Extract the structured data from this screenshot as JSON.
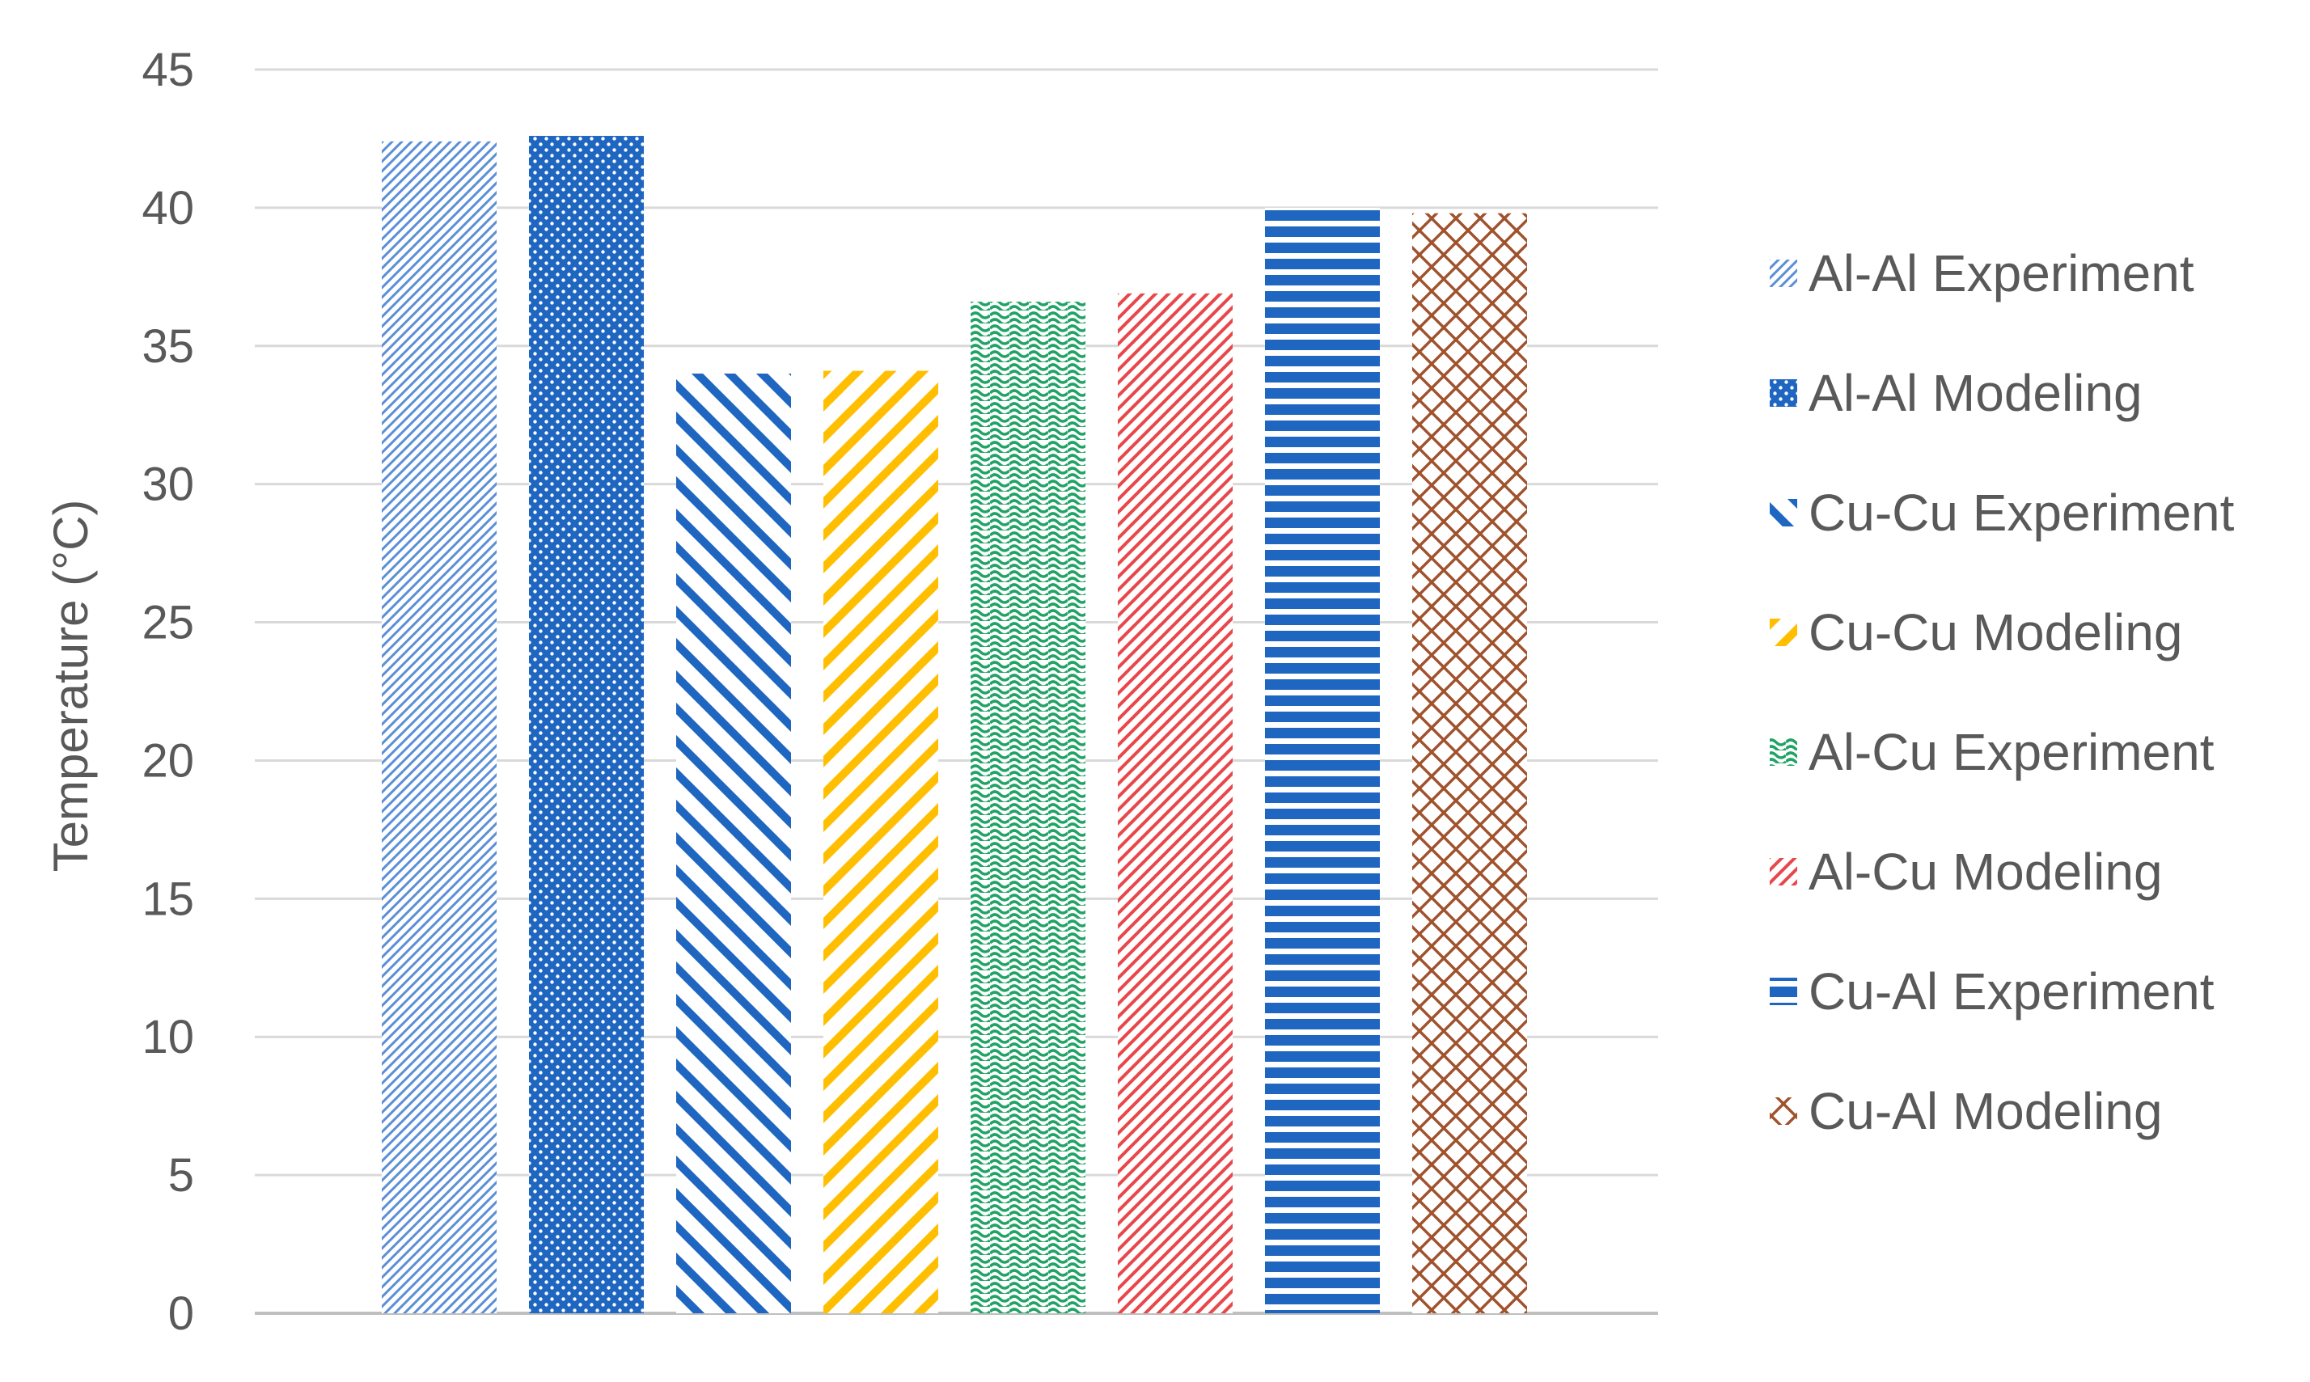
{
  "chart_data": {
    "type": "bar",
    "title": "",
    "xlabel": "",
    "ylabel": "Temperature (°C)",
    "ylim": [
      0,
      45
    ],
    "yticks": [
      0,
      5,
      10,
      15,
      20,
      25,
      30,
      35,
      40,
      45
    ],
    "grid": "horizontal",
    "legend_position": "right",
    "series": [
      {
        "name": "Al-Al Experiment",
        "value": 42.4,
        "color": "#5B8FD6",
        "pattern": "fine-diagonal"
      },
      {
        "name": "Al-Al Modeling",
        "value": 42.6,
        "color": "#1F66C1",
        "pattern": "dots"
      },
      {
        "name": "Cu-Cu Experiment",
        "value": 34.0,
        "color": "#1F66C1",
        "pattern": "wide-backward-diagonal"
      },
      {
        "name": "Cu-Cu Modeling",
        "value": 34.1,
        "color": "#FFBF00",
        "pattern": "wide-diagonal"
      },
      {
        "name": "Al-Cu Experiment",
        "value": 36.6,
        "color": "#21A366",
        "pattern": "wave"
      },
      {
        "name": "Al-Cu Modeling",
        "value": 36.9,
        "color": "#E8474B",
        "pattern": "diagonal"
      },
      {
        "name": "Cu-Al Experiment",
        "value": 40.0,
        "color": "#1F66C1",
        "pattern": "horizontal"
      },
      {
        "name": "Cu-Al Modeling",
        "value": 39.8,
        "color": "#A0522D",
        "pattern": "diagonal-cross"
      }
    ]
  }
}
